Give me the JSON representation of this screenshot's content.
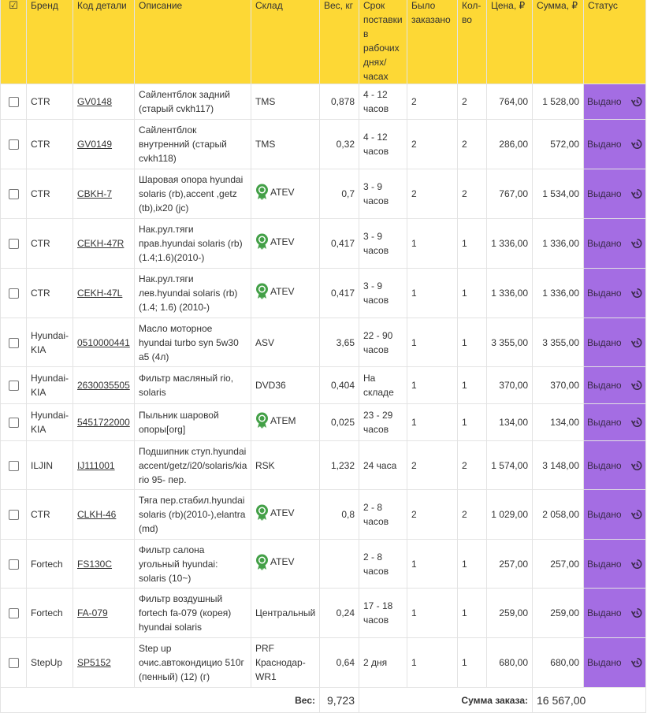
{
  "header": {
    "select_all_icon": "checkbox-checked-icon",
    "columns": [
      "Бренд",
      "Код детали",
      "Описание",
      "Склад",
      "Вес, кг",
      "Срок поставки в рабочих днях/ часах",
      "Было заказано",
      "Кол-во",
      "Цена, ₽",
      "Сумма, ₽",
      "Статус"
    ]
  },
  "rows": [
    {
      "brand": "CTR",
      "code": "GV0148",
      "description": "Сайлентблок задний (старый cvkh117)",
      "warehouse": "TMS",
      "certified": false,
      "weight": "0,878",
      "delivery": "4 - 12 часов",
      "ordered": "2",
      "qty": "2",
      "price": "764,00",
      "sum": "1 528,00",
      "status": "Выдано"
    },
    {
      "brand": "CTR",
      "code": "GV0149",
      "description": "Сайлентблок внутренний (старый cvkh118)",
      "warehouse": "TMS",
      "certified": false,
      "weight": "0,32",
      "delivery": "4 - 12 часов",
      "ordered": "2",
      "qty": "2",
      "price": "286,00",
      "sum": "572,00",
      "status": "Выдано"
    },
    {
      "brand": "CTR",
      "code": "CBKH-7",
      "description": "Шаровая опора hyundai solaris (rb),accent ,getz (tb),ix20 (jc)",
      "warehouse": "ATEV",
      "certified": true,
      "weight": "0,7",
      "delivery": "3 - 9 часов",
      "ordered": "2",
      "qty": "2",
      "price": "767,00",
      "sum": "1 534,00",
      "status": "Выдано"
    },
    {
      "brand": "CTR",
      "code": "CEKH-47R",
      "description": "Нак.рул.тяги прав.hyundai solaris (rb) (1.4;1.6)(2010-)",
      "warehouse": "ATEV",
      "certified": true,
      "weight": "0,417",
      "delivery": "3 - 9 часов",
      "ordered": "1",
      "qty": "1",
      "price": "1 336,00",
      "sum": "1 336,00",
      "status": "Выдано"
    },
    {
      "brand": "CTR",
      "code": "CEKH-47L",
      "description": "Нак.рул.тяги лев.hyundai solaris (rb) (1.4; 1.6) (2010-)",
      "warehouse": "ATEV",
      "certified": true,
      "weight": "0,417",
      "delivery": "3 - 9 часов",
      "ordered": "1",
      "qty": "1",
      "price": "1 336,00",
      "sum": "1 336,00",
      "status": "Выдано"
    },
    {
      "brand": "Hyundai-KIA",
      "code": "0510000441",
      "description": "Масло моторное hyundai turbo syn 5w30 a5 (4л)",
      "warehouse": "ASV",
      "certified": false,
      "weight": "3,65",
      "delivery": "22 - 90 часов",
      "ordered": "1",
      "qty": "1",
      "price": "3 355,00",
      "sum": "3 355,00",
      "status": "Выдано"
    },
    {
      "brand": "Hyundai-KIA",
      "code": "2630035505",
      "description": "Фильтр масляный rio, solaris",
      "warehouse": "DVD36",
      "certified": false,
      "weight": "0,404",
      "delivery": "На складе",
      "ordered": "1",
      "qty": "1",
      "price": "370,00",
      "sum": "370,00",
      "status": "Выдано"
    },
    {
      "brand": "Hyundai-KIA",
      "code": "5451722000",
      "description": "Пыльник шаровой опоры[org]",
      "warehouse": "ATEM",
      "certified": true,
      "weight": "0,025",
      "delivery": "23 - 29 часов",
      "ordered": "1",
      "qty": "1",
      "price": "134,00",
      "sum": "134,00",
      "status": "Выдано"
    },
    {
      "brand": "ILJIN",
      "code": "IJ111001",
      "description": "Подшипник ступ.hyundai accent/getz/i20/solaris/kia rio 95- пер.",
      "warehouse": "RSK",
      "certified": false,
      "weight": "1,232",
      "delivery": "24 часа",
      "ordered": "2",
      "qty": "2",
      "price": "1 574,00",
      "sum": "3 148,00",
      "status": "Выдано"
    },
    {
      "brand": "CTR",
      "code": "CLKH-46",
      "description": "Тяга пер.стабил.hyundai solaris (rb)(2010-),elantra (md)",
      "warehouse": "ATEV",
      "certified": true,
      "weight": "0,8",
      "delivery": "2 - 8 часов",
      "ordered": "2",
      "qty": "2",
      "price": "1 029,00",
      "sum": "2 058,00",
      "status": "Выдано"
    },
    {
      "brand": "Fortech",
      "code": "FS130C",
      "description": "Фильтр салона угольный hyundai: solaris (10~)",
      "warehouse": "ATEV",
      "certified": true,
      "weight": "",
      "delivery": "2 - 8 часов",
      "ordered": "1",
      "qty": "1",
      "price": "257,00",
      "sum": "257,00",
      "status": "Выдано"
    },
    {
      "brand": "Fortech",
      "code": "FA-079",
      "description": "Фильтр воздушный fortech fa-079 (корея) hyundai solaris",
      "warehouse": "Центральный",
      "certified": false,
      "weight": "0,24",
      "delivery": "17 - 18 часов",
      "ordered": "1",
      "qty": "1",
      "price": "259,00",
      "sum": "259,00",
      "status": "Выдано"
    },
    {
      "brand": "StepUp",
      "code": "SP5152",
      "description": "Step up очис.автокондицио 510г (пенный) (12) (г)",
      "warehouse": "PRF Краснодар-WR1",
      "certified": false,
      "weight": "0,64",
      "delivery": "2 дня",
      "ordered": "1",
      "qty": "1",
      "price": "680,00",
      "sum": "680,00",
      "status": "Выдано"
    }
  ],
  "footer": {
    "weight_label": "Вес:",
    "weight_total": "9,723",
    "sum_label": "Сумма заказа:",
    "sum_total": "16 567,00"
  },
  "colors": {
    "header_bg": "#fdd835",
    "status_bg": "#a46de3",
    "award_icon": "#43a047"
  }
}
